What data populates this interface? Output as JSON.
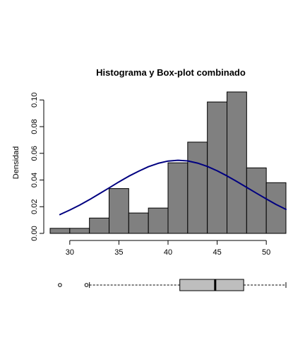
{
  "chart_data": [
    {
      "type": "bar",
      "subtype": "histogram",
      "title": "Histograma y Box-plot combinado",
      "xlabel": "",
      "ylabel": "Densidad",
      "bins": [
        {
          "from": 28,
          "to": 30,
          "density": 0.0038
        },
        {
          "from": 30,
          "to": 32,
          "density": 0.0038
        },
        {
          "from": 32,
          "to": 34,
          "density": 0.0115
        },
        {
          "from": 34,
          "to": 36,
          "density": 0.0336
        },
        {
          "from": 36,
          "to": 38,
          "density": 0.0153
        },
        {
          "from": 38,
          "to": 40,
          "density": 0.019
        },
        {
          "from": 40,
          "to": 42,
          "density": 0.0529
        },
        {
          "from": 42,
          "to": 44,
          "density": 0.0684
        },
        {
          "from": 44,
          "to": 46,
          "density": 0.0985
        },
        {
          "from": 46,
          "to": 48,
          "density": 0.106
        },
        {
          "from": 48,
          "to": 50,
          "density": 0.0491
        },
        {
          "from": 50,
          "to": 52,
          "density": 0.038
        }
      ],
      "xlim": [
        28,
        52
      ],
      "ylim": [
        0,
        0.106
      ],
      "x_ticks": [
        30,
        35,
        40,
        45,
        50
      ],
      "y_ticks": [
        0.0,
        0.02,
        0.04,
        0.06,
        0.08,
        0.1
      ],
      "y_tick_labels": [
        "0.00",
        "0.02",
        "0.04",
        "0.06",
        "0.08",
        "0.10"
      ],
      "bar_color": "#808080",
      "density_curve": {
        "type": "line",
        "color": "#000080",
        "x": [
          29,
          30,
          31,
          32,
          33,
          34,
          35,
          36,
          37,
          38,
          39,
          40,
          41,
          42,
          43,
          44,
          45,
          46,
          47,
          48,
          49,
          50,
          51,
          52
        ],
        "y": [
          0.0141,
          0.0175,
          0.0212,
          0.0253,
          0.0297,
          0.0341,
          0.0386,
          0.0428,
          0.0466,
          0.05,
          0.0525,
          0.0542,
          0.0548,
          0.0543,
          0.0527,
          0.0502,
          0.0469,
          0.0431,
          0.0389,
          0.0345,
          0.0301,
          0.0258,
          0.0217,
          0.018
        ]
      }
    },
    {
      "type": "boxplot",
      "orientation": "horizontal",
      "min_whisker": 32,
      "q1": 41.2,
      "median": 44.8,
      "q3": 47.7,
      "max_whisker": 52,
      "outliers": [
        29,
        31.7
      ],
      "box_color": "#bebebe"
    }
  ]
}
